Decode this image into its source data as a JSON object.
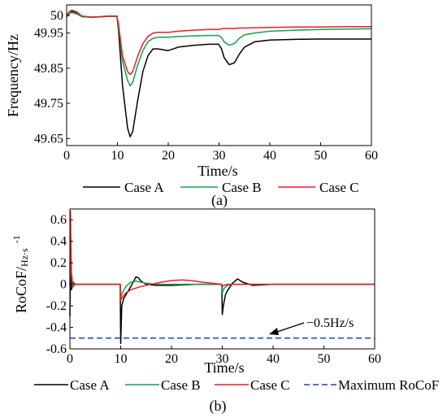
{
  "chart_data": [
    {
      "type": "line",
      "caption": "(a)",
      "xlabel": "Time/s",
      "ylabel": "Frequency/Hz",
      "xlim": [
        0,
        60
      ],
      "ylim": [
        49.63,
        50.03
      ],
      "xticks": [
        "0",
        "10",
        "20",
        "30",
        "40",
        "50",
        "60"
      ],
      "yticks": [
        "50",
        "49.95",
        "49.85",
        "49.75",
        "49.65"
      ],
      "ytick_values": [
        50,
        49.95,
        49.85,
        49.75,
        49.65
      ],
      "grid": false,
      "legend_position": "bottom",
      "colors": {
        "Case A": "#000000",
        "Case B": "#12a150",
        "Case C": "#ee1c24"
      },
      "series": [
        {
          "name": "Case A",
          "x": [
            0,
            0.5,
            1,
            2,
            3,
            5,
            8,
            9.9,
            10.2,
            11,
            12,
            12.5,
            13,
            14,
            15,
            16,
            17,
            18,
            20,
            22,
            25,
            28,
            29.9,
            30.5,
            31,
            32,
            33,
            34,
            35,
            37,
            40,
            45,
            50,
            55,
            60
          ],
          "y": [
            49.995,
            50.01,
            50.012,
            50.008,
            49.997,
            49.995,
            49.997,
            49.997,
            49.96,
            49.8,
            49.68,
            49.655,
            49.67,
            49.76,
            49.84,
            49.885,
            49.905,
            49.905,
            49.9,
            49.91,
            49.915,
            49.918,
            49.918,
            49.905,
            49.88,
            49.86,
            49.865,
            49.89,
            49.91,
            49.925,
            49.93,
            49.932,
            49.933,
            49.933,
            49.933
          ]
        },
        {
          "name": "Case B",
          "x": [
            0,
            0.5,
            1,
            2,
            3,
            5,
            8,
            9.9,
            10.2,
            11,
            12,
            12.5,
            13,
            14,
            15,
            16,
            17,
            18,
            20,
            22,
            25,
            28,
            29.9,
            30.5,
            31,
            32,
            33,
            34,
            35,
            37,
            40,
            45,
            50,
            55,
            60
          ],
          "y": [
            49.995,
            50.005,
            50.008,
            50.004,
            49.996,
            49.995,
            49.997,
            49.997,
            49.97,
            49.87,
            49.815,
            49.8,
            49.81,
            49.86,
            49.9,
            49.925,
            49.935,
            49.938,
            49.938,
            49.94,
            49.942,
            49.943,
            49.943,
            49.937,
            49.925,
            49.915,
            49.92,
            49.935,
            49.945,
            49.95,
            49.955,
            49.958,
            49.96,
            49.961,
            49.962
          ]
        },
        {
          "name": "Case C",
          "x": [
            0,
            0.5,
            1,
            2,
            3,
            5,
            8,
            9.9,
            10.2,
            11,
            12,
            12.5,
            13,
            14,
            15,
            16,
            17,
            18,
            20,
            22,
            25,
            28,
            29.9,
            30.5,
            31,
            32,
            33,
            34,
            35,
            37,
            40,
            45,
            50,
            55,
            60
          ],
          "y": [
            50.0,
            50.01,
            50.015,
            50.01,
            49.998,
            49.995,
            49.998,
            49.998,
            49.975,
            49.885,
            49.84,
            49.832,
            49.84,
            49.885,
            49.92,
            49.94,
            49.95,
            49.952,
            49.952,
            49.955,
            49.958,
            49.96,
            49.96,
            49.962,
            49.963,
            49.963,
            49.963,
            49.964,
            49.964,
            49.965,
            49.966,
            49.967,
            49.967,
            49.968,
            49.968
          ]
        }
      ]
    },
    {
      "type": "line",
      "caption": "(b)",
      "xlabel": "Time/s",
      "ylabel_main": "RoCoF/",
      "ylabel_unit": "Hz·s",
      "ylabel_exp": "-1",
      "xlim": [
        0,
        60
      ],
      "ylim": [
        -0.6,
        0.7
      ],
      "xticks": [
        "0",
        "10",
        "20",
        "30",
        "40",
        "50",
        "60"
      ],
      "yticks": [
        "0.6",
        "0.4",
        "0.2",
        "0",
        "-0.2",
        "-0.4",
        "-0.6"
      ],
      "ytick_values": [
        0.6,
        0.4,
        0.2,
        0,
        -0.2,
        -0.4,
        -0.6
      ],
      "grid": false,
      "legend_position": "bottom",
      "annotation": "−0.5Hz/s",
      "colors": {
        "Case A": "#000000",
        "Case B": "#12a150",
        "Case C": "#ee1c24",
        "Maximum RoCoF": "#1f3fcf"
      },
      "series": [
        {
          "name": "Case A",
          "x": [
            0,
            0.15,
            0.3,
            0.6,
            1,
            2,
            9.9,
            10.0,
            10.2,
            10.6,
            11,
            12,
            13,
            13.5,
            14,
            15,
            17,
            20,
            25,
            29.9,
            30.0,
            30.2,
            30.6,
            31,
            32,
            33,
            34,
            36,
            40,
            50,
            60
          ],
          "y": [
            -0.3,
            0.3,
            -0.05,
            0.02,
            0,
            0,
            0,
            -0.55,
            -0.2,
            -0.13,
            -0.1,
            -0.02,
            0.07,
            0.06,
            0.03,
            0.0,
            -0.01,
            -0.01,
            0,
            0,
            -0.28,
            -0.2,
            -0.1,
            -0.06,
            0.01,
            0.05,
            0.02,
            -0.01,
            0,
            0,
            0
          ]
        },
        {
          "name": "Case B",
          "x": [
            0,
            0.2,
            0.5,
            1,
            2,
            9.9,
            10.0,
            10.3,
            11,
            12,
            13,
            14,
            15,
            17,
            20,
            25,
            29.9,
            30.0,
            30.3,
            31,
            32,
            34,
            40,
            50,
            60
          ],
          "y": [
            0,
            0.2,
            -0.03,
            0,
            0,
            0,
            -0.12,
            -0.08,
            -0.02,
            0.02,
            0.03,
            0.02,
            0.01,
            0,
            0,
            0,
            0,
            -0.08,
            -0.04,
            -0.01,
            0,
            0,
            0,
            0,
            0
          ]
        },
        {
          "name": "Case C",
          "x": [
            0,
            0.1,
            0.3,
            0.6,
            1,
            2,
            9.9,
            10.0,
            10.3,
            11,
            12,
            14,
            16,
            18,
            20,
            22,
            24,
            26,
            28,
            29.9,
            30.0,
            30.3,
            31,
            33,
            36,
            40,
            50,
            60
          ],
          "y": [
            0,
            0.68,
            0.1,
            -0.02,
            0,
            0,
            0,
            -0.15,
            -0.12,
            -0.08,
            -0.05,
            -0.02,
            0.0,
            0.02,
            0.035,
            0.04,
            0.035,
            0.02,
            0.01,
            0.0,
            -0.02,
            -0.01,
            0.0,
            0.0,
            0,
            0,
            0,
            0
          ]
        },
        {
          "name": "Maximum RoCoF",
          "x": [
            0,
            60
          ],
          "y": [
            -0.5,
            -0.5
          ]
        }
      ]
    }
  ]
}
